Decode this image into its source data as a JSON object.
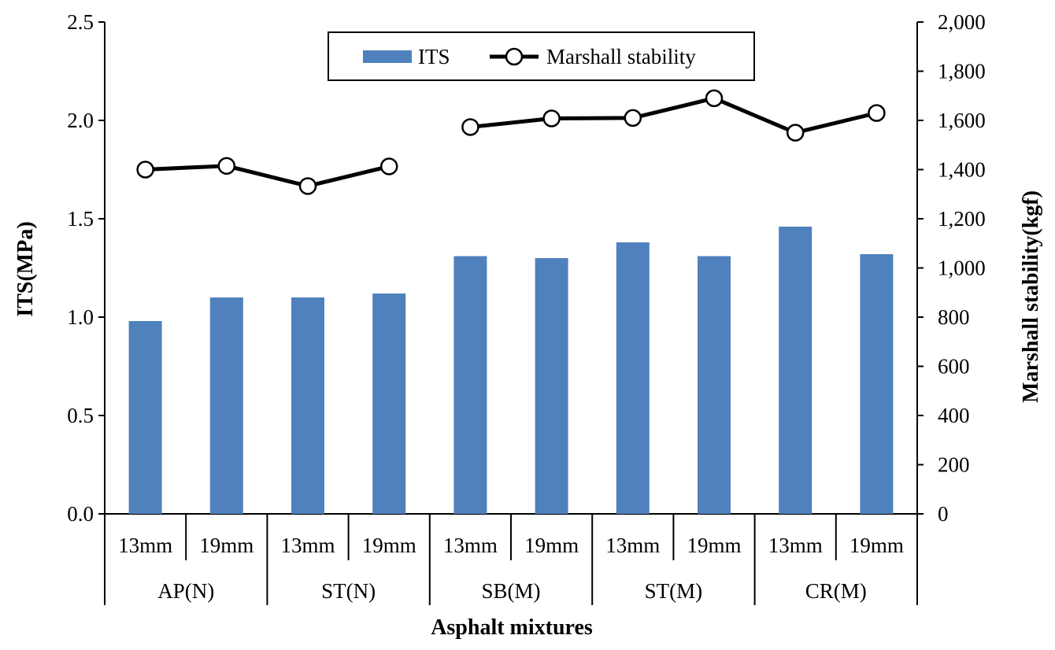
{
  "chart_data": {
    "type": "bar+line",
    "categories": [
      "13mm",
      "19mm",
      "13mm",
      "19mm",
      "13mm",
      "19mm",
      "13mm",
      "19mm",
      "13mm",
      "19mm"
    ],
    "groups": [
      "AP(N)",
      "ST(N)",
      "SB(M)",
      "ST(M)",
      "CR(M)"
    ],
    "series": [
      {
        "name": "ITS",
        "type": "bar",
        "axis": "left",
        "color": "#4f81bd",
        "values": [
          0.98,
          1.1,
          1.1,
          1.12,
          1.31,
          1.3,
          1.38,
          1.31,
          1.46,
          1.32
        ]
      },
      {
        "name": "Marshall stability",
        "type": "line",
        "axis": "right",
        "color": "#000000",
        "segments": [
          [
            0,
            3
          ],
          [
            4,
            9
          ]
        ],
        "values": [
          1400,
          1415,
          1333,
          1413,
          1573,
          1608,
          1610,
          1690,
          1550,
          1630
        ]
      }
    ],
    "xlabel": "Asphalt mixtures",
    "ylabel": "ITS(MPa)",
    "y2label": "Marshall stability(kgf)",
    "ylim": [
      0,
      2.5
    ],
    "y2lim": [
      0,
      2000
    ],
    "yticks": [
      "0.0",
      "0.5",
      "1.0",
      "1.5",
      "2.0",
      "2.5"
    ],
    "y2ticks": [
      "0",
      "200",
      "400",
      "600",
      "800",
      "1,000",
      "1,200",
      "1,400",
      "1,600",
      "1,800",
      "2,000"
    ],
    "legend": {
      "position": "top-center",
      "items": [
        "ITS",
        "Marshall stability"
      ]
    },
    "grid": false
  }
}
